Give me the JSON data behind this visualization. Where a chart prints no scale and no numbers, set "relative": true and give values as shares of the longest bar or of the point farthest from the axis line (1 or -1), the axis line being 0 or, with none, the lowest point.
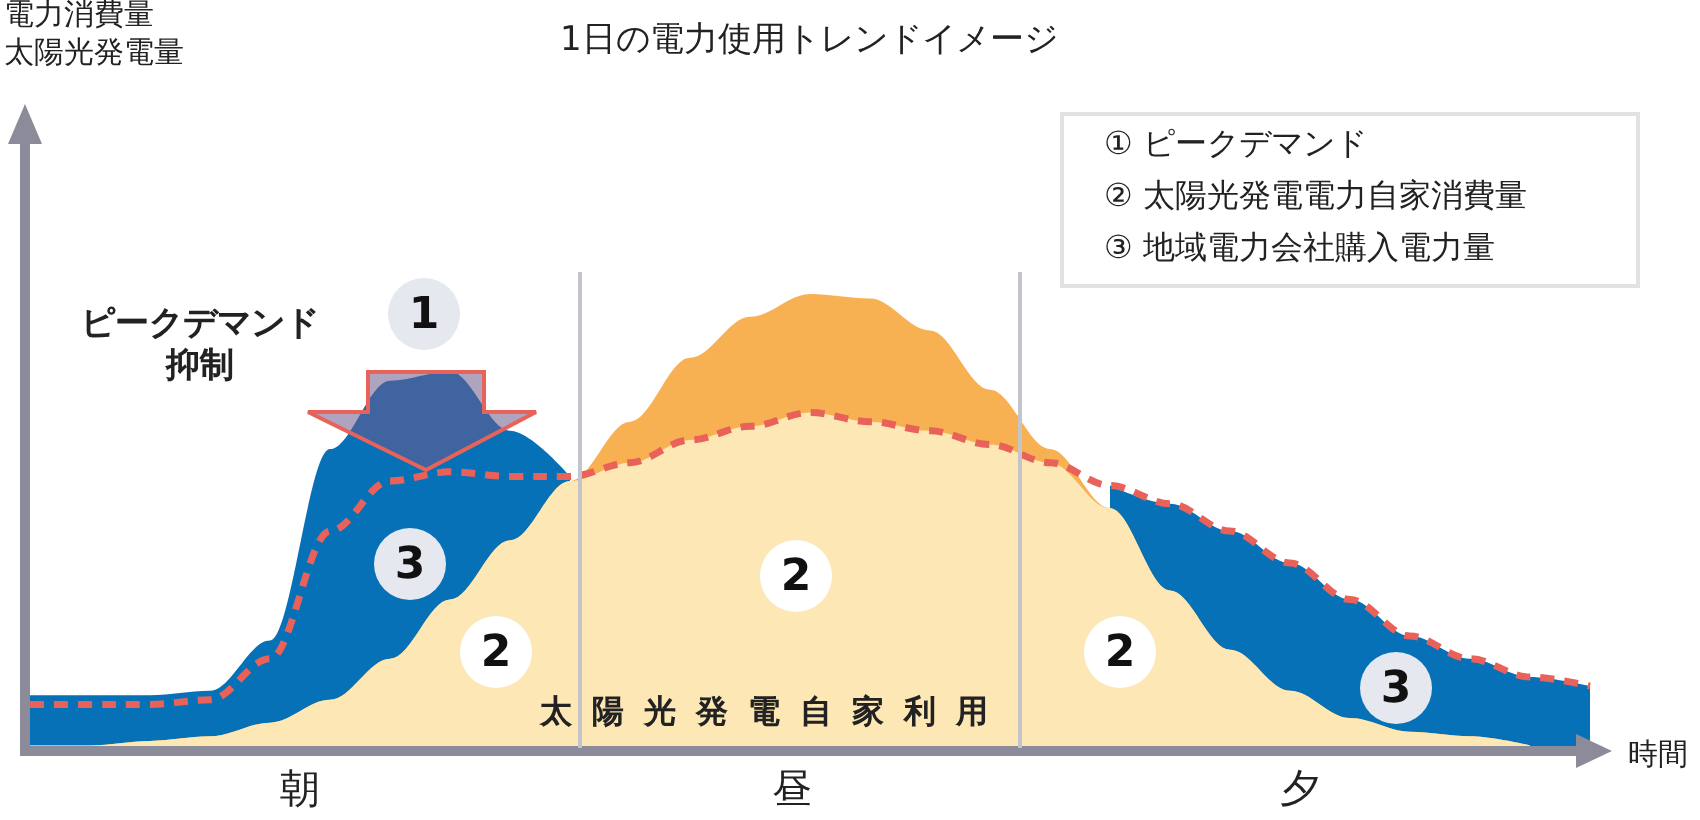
{
  "chart_data": {
    "type": "area",
    "relative": true,
    "title": "1日の電力使用トレンドイメージ",
    "xlabel": "時間",
    "categories": [
      null,
      null,
      null,
      null,
      null,
      null,
      null,
      null,
      null,
      null,
      null,
      null,
      null,
      null,
      null,
      null,
      null,
      null,
      null,
      null,
      null,
      null,
      null,
      null,
      null,
      null,
      null
    ],
    "series": [
      {
        "type": "area",
        "color": "#0771b8",
        "values": [
          0.12,
          0.12,
          0.12,
          0.13,
          0.24,
          0.66,
          0.81,
          0.83,
          0.7,
          0.6,
          null,
          null,
          null,
          null,
          null,
          null,
          null,
          null,
          0.58,
          0.54,
          0.48,
          0.41,
          0.33,
          0.25,
          0.2,
          0.16,
          0.14
        ]
      },
      {
        "type": "area",
        "color": "#f7b152",
        "values": [
          0.01,
          0.01,
          0.02,
          0.03,
          0.06,
          0.11,
          0.2,
          0.33,
          0.46,
          0.59,
          0.72,
          0.86,
          0.95,
          1.0,
          0.99,
          0.92,
          0.79,
          0.66,
          0.53,
          0.35,
          0.22,
          0.13,
          0.07,
          0.04,
          0.03,
          0.01,
          null
        ]
      },
      {
        "type": "area",
        "color": "#fde7b4",
        "values": [
          0.01,
          0.01,
          0.02,
          0.03,
          0.06,
          0.11,
          0.2,
          0.33,
          0.46,
          0.59,
          0.63,
          0.68,
          0.71,
          0.74,
          0.72,
          0.7,
          0.67,
          0.63,
          0.53,
          0.35,
          0.22,
          0.13,
          0.07,
          0.04,
          0.03,
          0.01,
          null
        ]
      },
      {
        "type": "line",
        "line_style": "dashed",
        "color": "#e8625a",
        "values": [
          0.1,
          0.1,
          0.1,
          0.11,
          0.2,
          0.48,
          0.59,
          0.61,
          0.6,
          0.6,
          0.63,
          0.68,
          0.71,
          0.74,
          0.72,
          0.7,
          0.67,
          0.63,
          0.58,
          0.54,
          0.48,
          0.41,
          0.33,
          0.25,
          0.2,
          0.16,
          0.14
        ]
      }
    ],
    "annotations": [
      "朝",
      "昼",
      "夕",
      "太陽光発電自家利用",
      "ピークデマンド抑制",
      "① ピークデマンド",
      "② 太陽光発電電力自家消費量",
      "③ 地域電力会社購入電力量",
      "1",
      "2",
      "2",
      "2",
      "3",
      "3",
      "電力消費量太陽光発電量"
    ]
  }
}
